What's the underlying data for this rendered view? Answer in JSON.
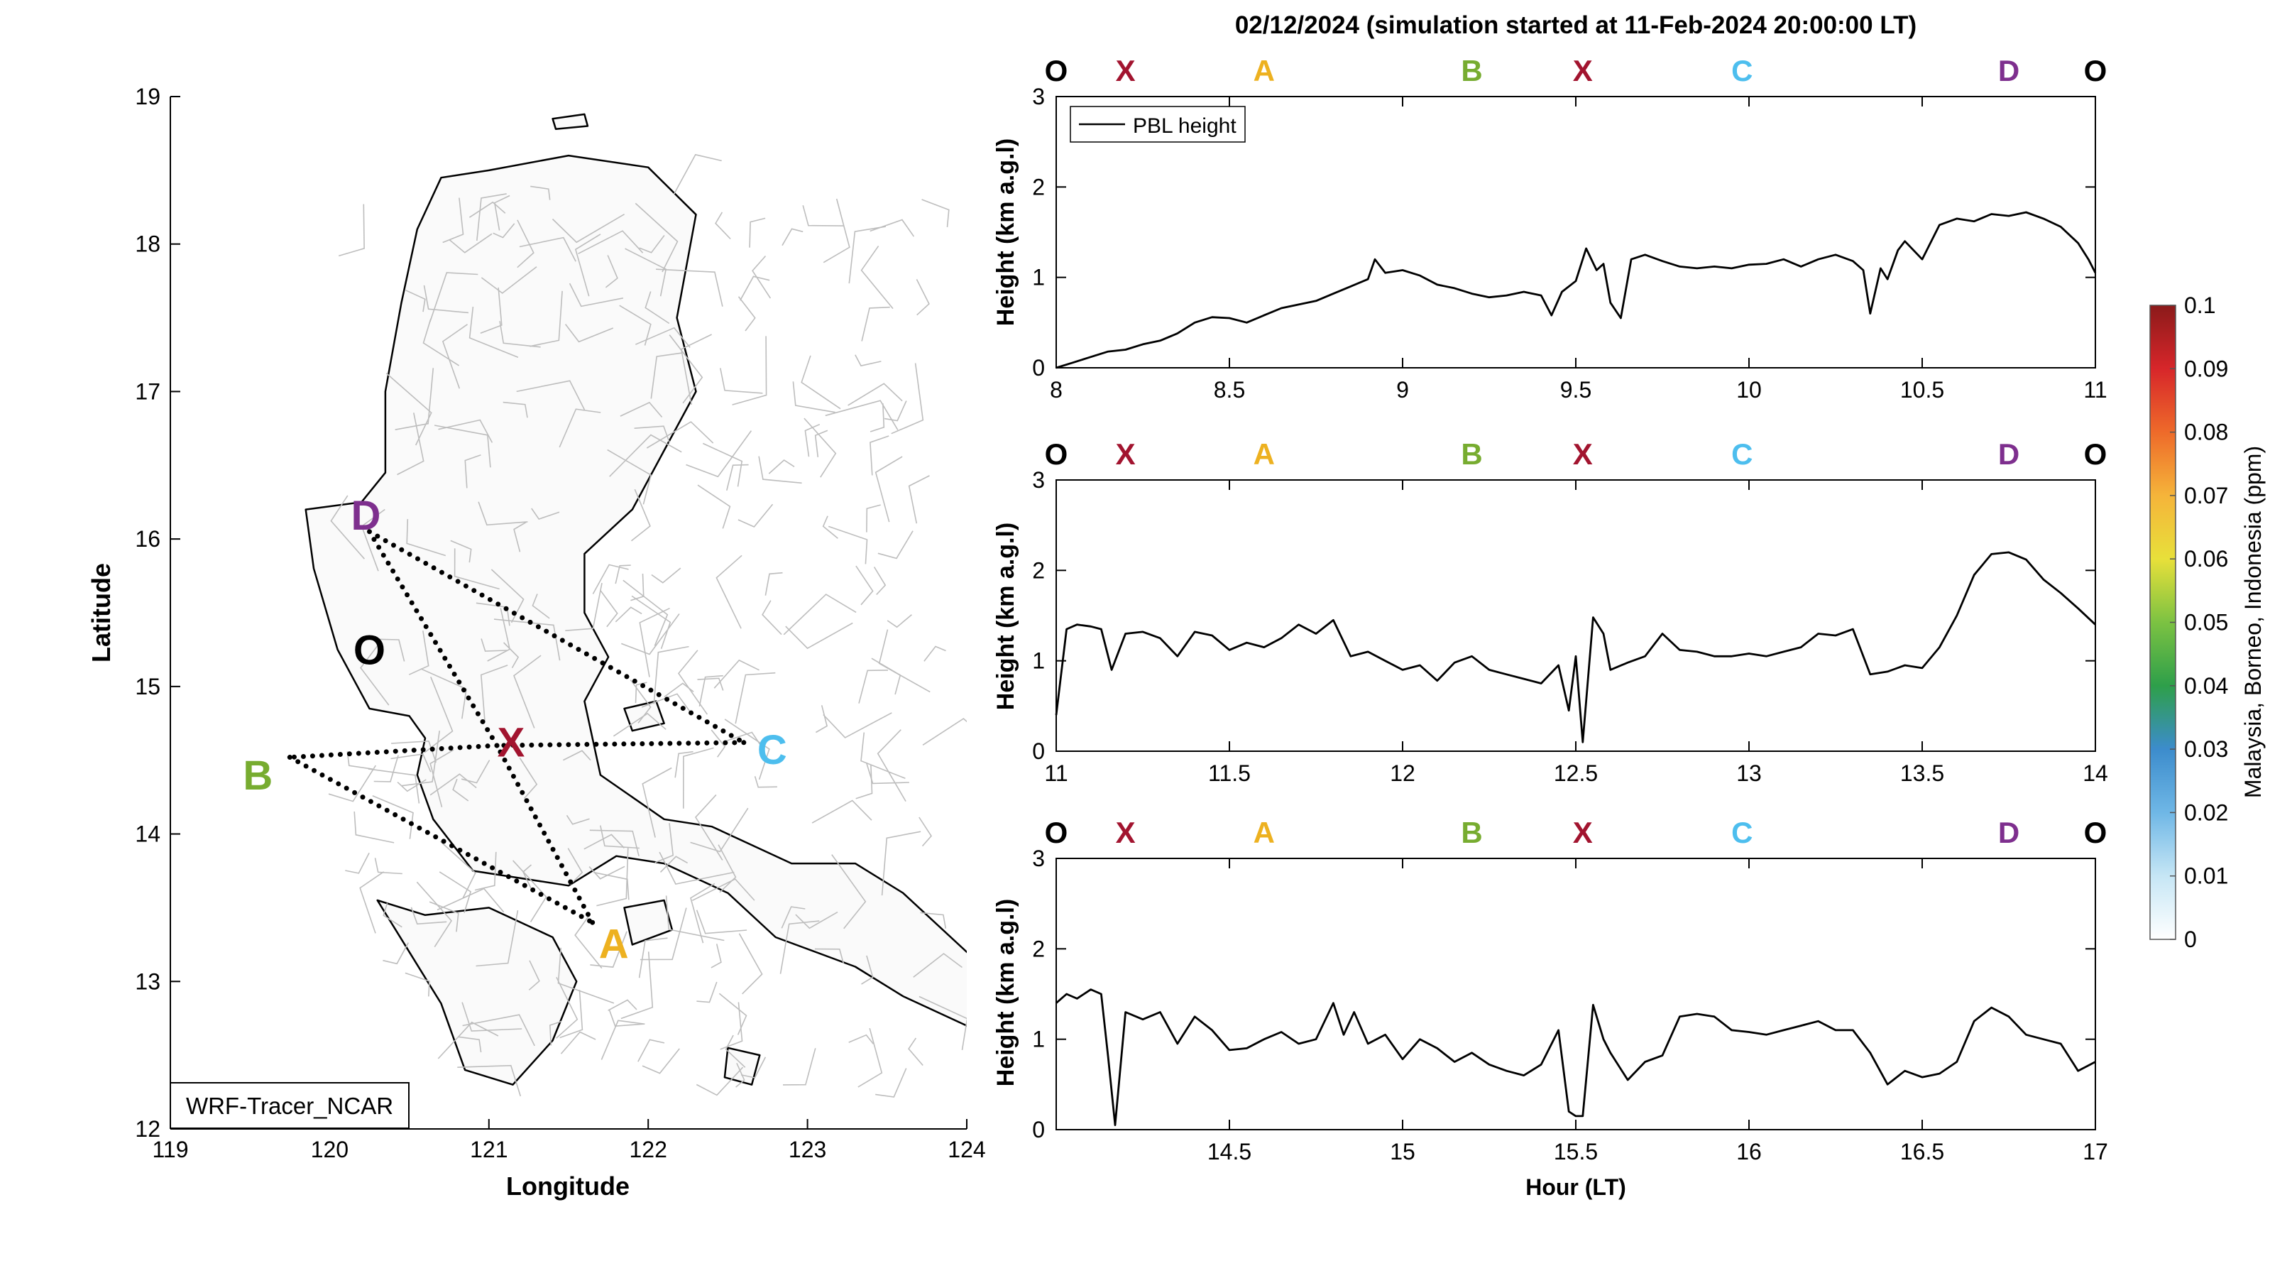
{
  "figure": {
    "title": "02/12/2024 (simulation started at 11-Feb-2024 20:00:00 LT)",
    "source_label": "WRF-Tracer_NCAR"
  },
  "colors": {
    "O": "#000000",
    "X": "#a2142f",
    "A": "#edb120",
    "B": "#77ac30",
    "C": "#4dbeee",
    "D": "#7e2f8e",
    "land_outline": "#000000",
    "boundaries": "#bdbdbd",
    "route": "#000000"
  },
  "chart_data": [
    {
      "type": "map",
      "name": "route-map",
      "xlabel": "Longitude",
      "ylabel": "Latitude",
      "xlim": [
        119,
        124
      ],
      "ylim": [
        12,
        19
      ],
      "xticks": [
        119,
        120,
        121,
        122,
        123,
        124
      ],
      "yticks": [
        12,
        13,
        14,
        15,
        16,
        17,
        18,
        19
      ],
      "points": [
        {
          "label": "D",
          "lon": 120.25,
          "lat": 16.05
        },
        {
          "label": "O",
          "lon": 120.45,
          "lat": 15.2
        },
        {
          "label": "X",
          "lon": 121.05,
          "lat": 14.6
        },
        {
          "label": "C",
          "lon": 122.6,
          "lat": 14.62
        },
        {
          "label": "B",
          "lon": 119.75,
          "lat": 14.52
        },
        {
          "label": "A",
          "lon": 121.65,
          "lat": 13.4
        }
      ],
      "route": [
        "D",
        "C",
        "X",
        "B",
        "A",
        "X",
        "D"
      ]
    },
    {
      "type": "line",
      "name": "pbl-panel-1",
      "ylabel": "Height (km a.g.l)",
      "legend": [
        "PBL height"
      ],
      "legend_position": "top-left",
      "xlim": [
        8,
        11
      ],
      "ylim": [
        0,
        3
      ],
      "xticks": [
        8,
        8.5,
        9,
        9.5,
        10,
        10.5,
        11
      ],
      "yticks": [
        0,
        1,
        2,
        3
      ],
      "site_labels": [
        {
          "label": "O",
          "x": 8.0
        },
        {
          "label": "X",
          "x": 8.2
        },
        {
          "label": "A",
          "x": 8.6
        },
        {
          "label": "B",
          "x": 9.2
        },
        {
          "label": "X",
          "x": 9.52
        },
        {
          "label": "C",
          "x": 9.98
        },
        {
          "label": "D",
          "x": 10.75
        },
        {
          "label": "O",
          "x": 11.0
        }
      ],
      "x": [
        8.0,
        8.05,
        8.1,
        8.15,
        8.2,
        8.25,
        8.3,
        8.35,
        8.4,
        8.45,
        8.5,
        8.55,
        8.6,
        8.65,
        8.7,
        8.75,
        8.8,
        8.85,
        8.9,
        8.92,
        8.95,
        9.0,
        9.05,
        9.1,
        9.15,
        9.2,
        9.25,
        9.3,
        9.35,
        9.4,
        9.43,
        9.46,
        9.5,
        9.53,
        9.56,
        9.58,
        9.6,
        9.63,
        9.66,
        9.7,
        9.75,
        9.8,
        9.85,
        9.9,
        9.95,
        10.0,
        10.05,
        10.1,
        10.15,
        10.2,
        10.25,
        10.3,
        10.33,
        10.35,
        10.38,
        10.4,
        10.43,
        10.45,
        10.5,
        10.55,
        10.6,
        10.65,
        10.7,
        10.75,
        10.8,
        10.85,
        10.9,
        10.95,
        10.98,
        11.0
      ],
      "y": [
        0.0,
        0.06,
        0.12,
        0.18,
        0.2,
        0.26,
        0.3,
        0.38,
        0.5,
        0.56,
        0.55,
        0.5,
        0.58,
        0.66,
        0.7,
        0.74,
        0.82,
        0.9,
        0.98,
        1.2,
        1.05,
        1.08,
        1.02,
        0.92,
        0.88,
        0.82,
        0.78,
        0.8,
        0.84,
        0.8,
        0.58,
        0.84,
        0.96,
        1.32,
        1.08,
        1.15,
        0.72,
        0.55,
        1.2,
        1.25,
        1.18,
        1.12,
        1.1,
        1.12,
        1.1,
        1.14,
        1.15,
        1.2,
        1.12,
        1.2,
        1.25,
        1.18,
        1.08,
        0.6,
        1.1,
        0.98,
        1.3,
        1.4,
        1.2,
        1.58,
        1.65,
        1.62,
        1.7,
        1.68,
        1.72,
        1.65,
        1.56,
        1.38,
        1.2,
        1.05
      ]
    },
    {
      "type": "line",
      "name": "pbl-panel-2",
      "ylabel": "Height (km a.g.l)",
      "xlim": [
        11,
        14
      ],
      "ylim": [
        0,
        3
      ],
      "xticks": [
        11,
        11.5,
        12,
        12.5,
        13,
        13.5,
        14
      ],
      "yticks": [
        0,
        1,
        2,
        3
      ],
      "site_labels": [
        {
          "label": "O",
          "x": 11.0
        },
        {
          "label": "X",
          "x": 11.2
        },
        {
          "label": "A",
          "x": 11.6
        },
        {
          "label": "B",
          "x": 12.2
        },
        {
          "label": "X",
          "x": 12.52
        },
        {
          "label": "C",
          "x": 12.98
        },
        {
          "label": "D",
          "x": 13.75
        },
        {
          "label": "O",
          "x": 14.0
        }
      ],
      "x": [
        11.0,
        11.03,
        11.06,
        11.1,
        11.13,
        11.16,
        11.2,
        11.25,
        11.3,
        11.35,
        11.4,
        11.45,
        11.5,
        11.55,
        11.6,
        11.65,
        11.7,
        11.75,
        11.8,
        11.85,
        11.9,
        11.95,
        12.0,
        12.05,
        12.1,
        12.15,
        12.2,
        12.25,
        12.3,
        12.35,
        12.4,
        12.45,
        12.48,
        12.5,
        12.52,
        12.55,
        12.58,
        12.6,
        12.65,
        12.7,
        12.75,
        12.8,
        12.85,
        12.9,
        12.95,
        13.0,
        13.05,
        13.1,
        13.15,
        13.2,
        13.25,
        13.3,
        13.35,
        13.4,
        13.45,
        13.5,
        13.55,
        13.6,
        13.65,
        13.7,
        13.75,
        13.8,
        13.85,
        13.9,
        13.95,
        14.0
      ],
      "y": [
        0.4,
        1.35,
        1.4,
        1.38,
        1.35,
        0.9,
        1.3,
        1.32,
        1.25,
        1.05,
        1.32,
        1.28,
        1.12,
        1.2,
        1.15,
        1.25,
        1.4,
        1.3,
        1.45,
        1.05,
        1.1,
        1.0,
        0.9,
        0.95,
        0.78,
        0.98,
        1.05,
        0.9,
        0.85,
        0.8,
        0.75,
        0.95,
        0.45,
        1.05,
        0.1,
        1.48,
        1.3,
        0.9,
        0.98,
        1.05,
        1.3,
        1.12,
        1.1,
        1.05,
        1.05,
        1.08,
        1.05,
        1.1,
        1.15,
        1.3,
        1.28,
        1.35,
        0.85,
        0.88,
        0.95,
        0.92,
        1.15,
        1.5,
        1.95,
        2.18,
        2.2,
        2.12,
        1.9,
        1.75,
        1.58,
        1.4
      ]
    },
    {
      "type": "line",
      "name": "pbl-panel-3",
      "ylabel": "Height (km a.g.l)",
      "xlabel": "Hour (LT)",
      "xlim": [
        14,
        17
      ],
      "ylim": [
        0,
        3
      ],
      "xticks": [
        14.5,
        15,
        15.5,
        16,
        16.5,
        17
      ],
      "yticks": [
        0,
        1,
        2,
        3
      ],
      "site_labels": [
        {
          "label": "O",
          "x": 14.0
        },
        {
          "label": "X",
          "x": 14.2
        },
        {
          "label": "A",
          "x": 14.6
        },
        {
          "label": "B",
          "x": 15.2
        },
        {
          "label": "X",
          "x": 15.52
        },
        {
          "label": "C",
          "x": 15.98
        },
        {
          "label": "D",
          "x": 16.75
        },
        {
          "label": "O",
          "x": 17.0
        }
      ],
      "x": [
        14.0,
        14.03,
        14.06,
        14.1,
        14.13,
        14.15,
        14.17,
        14.2,
        14.25,
        14.3,
        14.35,
        14.4,
        14.45,
        14.5,
        14.55,
        14.6,
        14.65,
        14.7,
        14.75,
        14.8,
        14.83,
        14.86,
        14.9,
        14.95,
        15.0,
        15.05,
        15.1,
        15.15,
        15.2,
        15.25,
        15.3,
        15.35,
        15.4,
        15.45,
        15.48,
        15.5,
        15.52,
        15.55,
        15.58,
        15.6,
        15.65,
        15.7,
        15.75,
        15.8,
        15.85,
        15.9,
        15.95,
        16.0,
        16.05,
        16.1,
        16.15,
        16.2,
        16.25,
        16.3,
        16.35,
        16.4,
        16.45,
        16.5,
        16.55,
        16.6,
        16.65,
        16.7,
        16.75,
        16.8,
        16.85,
        16.9,
        16.95,
        17.0
      ],
      "y": [
        1.4,
        1.5,
        1.45,
        1.55,
        1.5,
        0.8,
        0.05,
        1.3,
        1.22,
        1.3,
        0.95,
        1.25,
        1.1,
        0.88,
        0.9,
        1.0,
        1.08,
        0.95,
        1.0,
        1.4,
        1.05,
        1.3,
        0.95,
        1.05,
        0.78,
        1.0,
        0.9,
        0.75,
        0.85,
        0.72,
        0.65,
        0.6,
        0.72,
        1.1,
        0.2,
        0.15,
        0.15,
        1.38,
        1.0,
        0.85,
        0.55,
        0.75,
        0.82,
        1.25,
        1.28,
        1.25,
        1.1,
        1.08,
        1.05,
        1.1,
        1.15,
        1.2,
        1.1,
        1.1,
        0.85,
        0.5,
        0.65,
        0.58,
        0.62,
        0.75,
        1.2,
        1.35,
        1.25,
        1.05,
        1.0,
        0.95,
        0.65,
        0.75
      ]
    }
  ],
  "colorbar": {
    "label": "Malaysia, Borneo, Indonesia (ppm)",
    "min": 0,
    "max": 0.1,
    "ticks": [
      "0",
      "0.01",
      "0.02",
      "0.03",
      "0.04",
      "0.05",
      "0.06",
      "0.07",
      "0.08",
      "0.09",
      "0.1"
    ],
    "colormap": [
      "#ffffff",
      "#c6e6f5",
      "#6fb7e6",
      "#3c8ccc",
      "#2e9f4a",
      "#7cc242",
      "#e8e03a",
      "#f5b43a",
      "#ee6a2a",
      "#d7262a",
      "#8b1a1a"
    ]
  }
}
